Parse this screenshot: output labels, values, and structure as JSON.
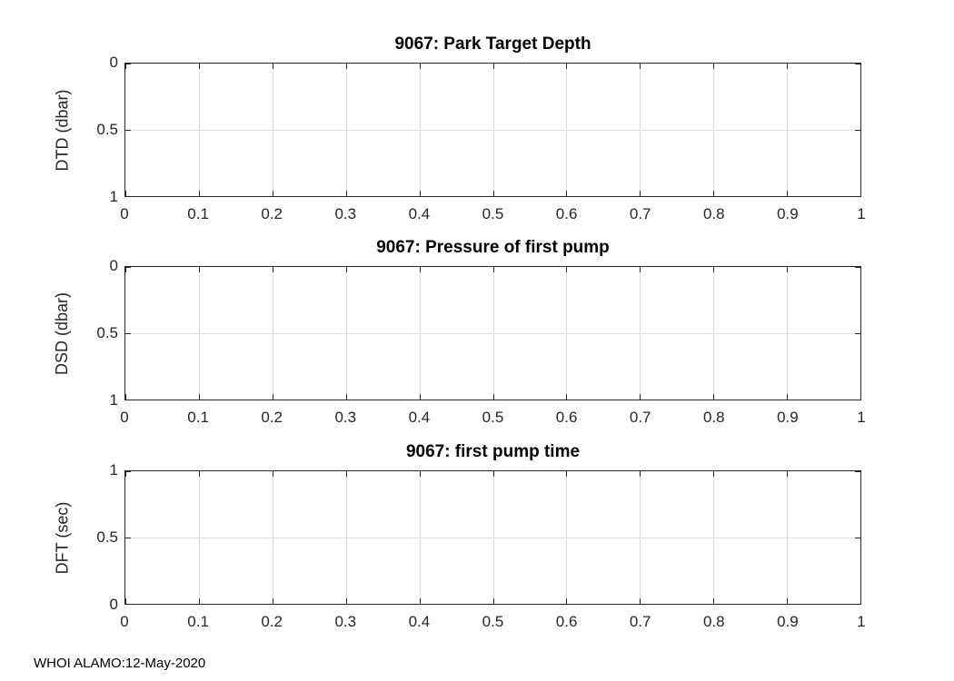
{
  "figure": {
    "footer": "WHOI ALAMO:12-May-2020",
    "background": "#ffffff",
    "colors": {
      "axis": "#262626",
      "grid": "#d9d9d9",
      "tick_label": "#262626",
      "title": "#000000"
    }
  },
  "chart_data": [
    {
      "type": "line",
      "title": "9067: Park Target Depth",
      "xlabel": "",
      "ylabel": "DTD (dbar)",
      "xlim": [
        0,
        1
      ],
      "ylim": [
        0,
        1
      ],
      "ydir": "reverse",
      "grid": true,
      "legend": null,
      "xticks": [
        0,
        0.1,
        0.2,
        0.3,
        0.4,
        0.5,
        0.6,
        0.7,
        0.8,
        0.9,
        1
      ],
      "xtick_labels": [
        "0",
        "0.1",
        "0.2",
        "0.3",
        "0.4",
        "0.5",
        "0.6",
        "0.7",
        "0.8",
        "0.9",
        "1"
      ],
      "yticks": [
        0,
        0.5,
        1
      ],
      "ytick_labels": [
        "0",
        "0.5",
        "1"
      ],
      "series": []
    },
    {
      "type": "line",
      "title": "9067: Pressure of first pump",
      "xlabel": "",
      "ylabel": "DSD (dbar)",
      "xlim": [
        0,
        1
      ],
      "ylim": [
        0,
        1
      ],
      "ydir": "reverse",
      "grid": true,
      "legend": null,
      "xticks": [
        0,
        0.1,
        0.2,
        0.3,
        0.4,
        0.5,
        0.6,
        0.7,
        0.8,
        0.9,
        1
      ],
      "xtick_labels": [
        "0",
        "0.1",
        "0.2",
        "0.3",
        "0.4",
        "0.5",
        "0.6",
        "0.7",
        "0.8",
        "0.9",
        "1"
      ],
      "yticks": [
        0,
        0.5,
        1
      ],
      "ytick_labels": [
        "0",
        "0.5",
        "1"
      ],
      "series": []
    },
    {
      "type": "line",
      "title": "9067: first pump time",
      "xlabel": "",
      "ylabel": "DFT (sec)",
      "xlim": [
        0,
        1
      ],
      "ylim": [
        0,
        1
      ],
      "ydir": "normal",
      "grid": true,
      "legend": null,
      "xticks": [
        0,
        0.1,
        0.2,
        0.3,
        0.4,
        0.5,
        0.6,
        0.7,
        0.8,
        0.9,
        1
      ],
      "xtick_labels": [
        "0",
        "0.1",
        "0.2",
        "0.3",
        "0.4",
        "0.5",
        "0.6",
        "0.7",
        "0.8",
        "0.9",
        "1"
      ],
      "yticks": [
        0,
        0.5,
        1
      ],
      "ytick_labels": [
        "0",
        "0.5",
        "1"
      ],
      "series": []
    }
  ]
}
